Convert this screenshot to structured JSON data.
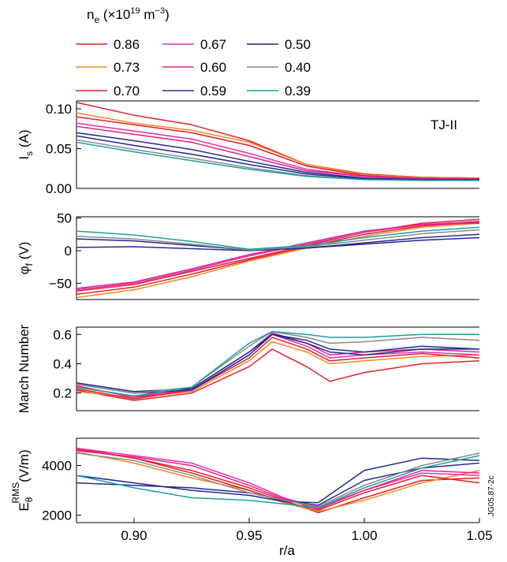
{
  "chart_data": {
    "type": "line",
    "legend": {
      "title_base": "n",
      "title_sub": "e",
      "title_rest": " (×10",
      "title_sup": "19",
      "title_unit": " m",
      "title_unit_sup": "−3",
      "title_close": ")",
      "placement": "top",
      "entries": [
        {
          "name": "0.86",
          "color": "#e8202a"
        },
        {
          "name": "0.73",
          "color": "#f08a24"
        },
        {
          "name": "0.70",
          "color": "#e0202c"
        },
        {
          "name": "0.67",
          "color": "#e030b0"
        },
        {
          "name": "0.60",
          "color": "#e8208a"
        },
        {
          "name": "0.59",
          "color": "#2a2a8c"
        },
        {
          "name": "0.50",
          "color": "#1f2a8f"
        },
        {
          "name": "0.40",
          "color": "#8a8a8a"
        },
        {
          "name": "0.39",
          "color": "#1aa0a0"
        }
      ]
    },
    "x": {
      "label": "r/a",
      "lim": [
        0.875,
        1.05
      ],
      "ticks": [
        "0.90",
        "0.95",
        "1.00",
        "1.05"
      ],
      "tick_values": [
        0.9,
        0.95,
        1.0,
        1.05
      ]
    },
    "annotation": "TJ-II",
    "watermark": "JG05.87-2c",
    "panels": [
      {
        "id": "Is",
        "ylabel_base": "I",
        "ylabel_sub": "s",
        "ylabel_rest": " (A)",
        "ylim": [
          0.0,
          0.11
        ],
        "yticks": [
          "0.10",
          "0.05",
          "0.00"
        ],
        "ytick_values": [
          0.1,
          0.05,
          0.0
        ],
        "series": [
          {
            "name": "0.86",
            "x": [
              0.875,
              0.9,
              0.925,
              0.95,
              0.975,
              1.0,
              1.025,
              1.05
            ],
            "y": [
              0.108,
              0.092,
              0.08,
              0.06,
              0.03,
              0.018,
              0.014,
              0.013
            ]
          },
          {
            "name": "0.73",
            "x": [
              0.875,
              0.9,
              0.925,
              0.95,
              0.975,
              1.0,
              1.025,
              1.05
            ],
            "y": [
              0.095,
              0.082,
              0.073,
              0.058,
              0.03,
              0.017,
              0.014,
              0.013
            ]
          },
          {
            "name": "0.70",
            "x": [
              0.875,
              0.9,
              0.925,
              0.95,
              0.975,
              1.0,
              1.025,
              1.05
            ],
            "y": [
              0.09,
              0.08,
              0.07,
              0.054,
              0.028,
              0.016,
              0.013,
              0.012
            ]
          },
          {
            "name": "0.67",
            "x": [
              0.875,
              0.9,
              0.925,
              0.95,
              0.975,
              1.0,
              1.025,
              1.05
            ],
            "y": [
              0.082,
              0.072,
              0.062,
              0.044,
              0.024,
              0.015,
              0.013,
              0.012
            ]
          },
          {
            "name": "0.60",
            "x": [
              0.875,
              0.9,
              0.925,
              0.95,
              0.975,
              1.0,
              1.025,
              1.05
            ],
            "y": [
              0.078,
              0.068,
              0.058,
              0.04,
              0.022,
              0.015,
              0.012,
              0.012
            ]
          },
          {
            "name": "0.59",
            "x": [
              0.875,
              0.9,
              0.925,
              0.95,
              0.975,
              1.0,
              1.025,
              1.05
            ],
            "y": [
              0.07,
              0.06,
              0.049,
              0.034,
              0.02,
              0.013,
              0.011,
              0.011
            ]
          },
          {
            "name": "0.50",
            "x": [
              0.875,
              0.9,
              0.925,
              0.95,
              0.975,
              1.0,
              1.025,
              1.05
            ],
            "y": [
              0.066,
              0.054,
              0.043,
              0.03,
              0.018,
              0.012,
              0.011,
              0.01
            ]
          },
          {
            "name": "0.40",
            "x": [
              0.875,
              0.9,
              0.925,
              0.95,
              0.975,
              1.0,
              1.025,
              1.05
            ],
            "y": [
              0.061,
              0.049,
              0.038,
              0.026,
              0.016,
              0.011,
              0.01,
              0.01
            ]
          },
          {
            "name": "0.39",
            "x": [
              0.875,
              0.9,
              0.925,
              0.95,
              0.975,
              1.0,
              1.025,
              1.05
            ],
            "y": [
              0.058,
              0.046,
              0.035,
              0.024,
              0.015,
              0.011,
              0.01,
              0.01
            ]
          }
        ]
      },
      {
        "id": "phi",
        "ylabel_base": "φ",
        "ylabel_sub": "f",
        "ylabel_rest": " (V)",
        "ylim": [
          -75,
          52
        ],
        "yticks": [
          "50",
          "0",
          "−50"
        ],
        "ytick_values": [
          50,
          0,
          -50
        ],
        "series": [
          {
            "name": "0.86",
            "x": [
              0.875,
              0.9,
              0.925,
              0.95,
              0.975,
              1.0,
              1.025,
              1.05
            ],
            "y": [
              -62,
              -52,
              -32,
              -12,
              8,
              28,
              42,
              48
            ]
          },
          {
            "name": "0.73",
            "x": [
              0.875,
              0.9,
              0.925,
              0.95,
              0.975,
              1.0,
              1.025,
              1.05
            ],
            "y": [
              -72,
              -60,
              -40,
              -16,
              4,
              22,
              36,
              42
            ]
          },
          {
            "name": "0.70",
            "x": [
              0.875,
              0.9,
              0.925,
              0.95,
              0.975,
              1.0,
              1.025,
              1.05
            ],
            "y": [
              -67,
              -56,
              -36,
              -14,
              6,
              25,
              38,
              44
            ]
          },
          {
            "name": "0.67",
            "x": [
              0.875,
              0.9,
              0.925,
              0.95,
              0.975,
              1.0,
              1.025,
              1.05
            ],
            "y": [
              -60,
              -50,
              -30,
              -8,
              10,
              28,
              40,
              45
            ]
          },
          {
            "name": "0.60",
            "x": [
              0.875,
              0.9,
              0.925,
              0.95,
              0.975,
              1.0,
              1.025,
              1.05
            ],
            "y": [
              -58,
              -48,
              -28,
              -6,
              12,
              30,
              40,
              42
            ]
          },
          {
            "name": "0.59",
            "x": [
              0.875,
              0.9,
              0.925,
              0.95,
              0.975,
              1.0,
              1.025,
              1.05
            ],
            "y": [
              5,
              6,
              3,
              0,
              4,
              12,
              20,
              25
            ]
          },
          {
            "name": "0.50",
            "x": [
              0.875,
              0.9,
              0.925,
              0.95,
              0.975,
              1.0,
              1.025,
              1.05
            ],
            "y": [
              18,
              15,
              8,
              1,
              4,
              10,
              16,
              20
            ]
          },
          {
            "name": "0.40",
            "x": [
              0.875,
              0.9,
              0.925,
              0.95,
              0.975,
              1.0,
              1.025,
              1.05
            ],
            "y": [
              22,
              18,
              10,
              1,
              6,
              16,
              26,
              32
            ]
          },
          {
            "name": "0.39",
            "x": [
              0.875,
              0.9,
              0.925,
              0.95,
              0.975,
              1.0,
              1.025,
              1.05
            ],
            "y": [
              30,
              24,
              14,
              2,
              8,
              20,
              30,
              36
            ]
          }
        ]
      },
      {
        "id": "mach",
        "ylabel_base": "March Number",
        "ylabel_sub": "",
        "ylabel_rest": "",
        "ylim": [
          0.08,
          0.65
        ],
        "yticks": [
          "0.6",
          "0.4",
          "0.2"
        ],
        "ytick_values": [
          0.6,
          0.4,
          0.2
        ],
        "series": [
          {
            "name": "0.86",
            "x": [
              0.875,
              0.9,
              0.925,
              0.95,
              0.96,
              0.975,
              0.985,
              1.0,
              1.025,
              1.05
            ],
            "y": [
              0.22,
              0.15,
              0.2,
              0.38,
              0.5,
              0.38,
              0.28,
              0.34,
              0.4,
              0.42
            ]
          },
          {
            "name": "0.73",
            "x": [
              0.875,
              0.9,
              0.925,
              0.95,
              0.96,
              0.975,
              0.985,
              1.0,
              1.025,
              1.05
            ],
            "y": [
              0.21,
              0.17,
              0.21,
              0.42,
              0.55,
              0.48,
              0.4,
              0.42,
              0.45,
              0.46
            ]
          },
          {
            "name": "0.70",
            "x": [
              0.875,
              0.9,
              0.925,
              0.95,
              0.96,
              0.975,
              0.985,
              1.0,
              1.025,
              1.05
            ],
            "y": [
              0.23,
              0.16,
              0.22,
              0.44,
              0.58,
              0.5,
              0.42,
              0.44,
              0.47,
              0.44
            ]
          },
          {
            "name": "0.67",
            "x": [
              0.875,
              0.9,
              0.925,
              0.95,
              0.96,
              0.975,
              0.985,
              1.0,
              1.025,
              1.05
            ],
            "y": [
              0.24,
              0.18,
              0.22,
              0.46,
              0.6,
              0.52,
              0.44,
              0.46,
              0.48,
              0.46
            ]
          },
          {
            "name": "0.60",
            "x": [
              0.875,
              0.9,
              0.925,
              0.95,
              0.96,
              0.975,
              0.985,
              1.0,
              1.025,
              1.05
            ],
            "y": [
              0.25,
              0.17,
              0.23,
              0.48,
              0.61,
              0.54,
              0.46,
              0.48,
              0.5,
              0.48
            ]
          },
          {
            "name": "0.59",
            "x": [
              0.875,
              0.9,
              0.925,
              0.95,
              0.96,
              0.975,
              0.985,
              1.0,
              1.025,
              1.05
            ],
            "y": [
              0.26,
              0.2,
              0.22,
              0.46,
              0.6,
              0.54,
              0.48,
              0.46,
              0.5,
              0.5
            ]
          },
          {
            "name": "0.50",
            "x": [
              0.875,
              0.9,
              0.925,
              0.95,
              0.96,
              0.975,
              0.985,
              1.0,
              1.025,
              1.05
            ],
            "y": [
              0.27,
              0.21,
              0.23,
              0.48,
              0.6,
              0.56,
              0.5,
              0.48,
              0.52,
              0.5
            ]
          },
          {
            "name": "0.40",
            "x": [
              0.875,
              0.9,
              0.925,
              0.95,
              0.96,
              0.975,
              0.985,
              1.0,
              1.025,
              1.05
            ],
            "y": [
              0.26,
              0.2,
              0.24,
              0.52,
              0.62,
              0.58,
              0.54,
              0.55,
              0.58,
              0.56
            ]
          },
          {
            "name": "0.39",
            "x": [
              0.875,
              0.9,
              0.925,
              0.95,
              0.96,
              0.975,
              0.985,
              1.0,
              1.025,
              1.05
            ],
            "y": [
              0.24,
              0.18,
              0.24,
              0.54,
              0.62,
              0.6,
              0.58,
              0.58,
              0.6,
              0.6
            ]
          }
        ]
      },
      {
        "id": "Erms",
        "ylabel_base": "E",
        "ylabel_sub": "θ",
        "ylabel_sup": "RMS",
        "ylabel_rest": "(V/m)",
        "ylim": [
          1700,
          5100
        ],
        "yticks": [
          "4000",
          "2000"
        ],
        "ytick_values": [
          4000,
          2000
        ],
        "series": [
          {
            "name": "0.86",
            "x": [
              0.875,
              0.9,
              0.925,
              0.95,
              0.965,
              0.98,
              1.0,
              1.025,
              1.05
            ],
            "y": [
              4700,
              4300,
              3800,
              3100,
              2600,
              2100,
              2700,
              3400,
              3500
            ]
          },
          {
            "name": "0.73",
            "x": [
              0.875,
              0.9,
              0.925,
              0.95,
              0.965,
              0.98,
              1.0,
              1.025,
              1.05
            ],
            "y": [
              4550,
              4100,
              3500,
              3000,
              2500,
              2150,
              2600,
              3300,
              3800
            ]
          },
          {
            "name": "0.70",
            "x": [
              0.875,
              0.9,
              0.925,
              0.95,
              0.965,
              0.98,
              1.0,
              1.025,
              1.05
            ],
            "y": [
              4650,
              4300,
              3700,
              3000,
              2550,
              2200,
              2900,
              3600,
              3300
            ]
          },
          {
            "name": "0.67",
            "x": [
              0.875,
              0.9,
              0.925,
              0.95,
              0.965,
              0.98,
              1.0,
              1.025,
              1.05
            ],
            "y": [
              4700,
              4400,
              4100,
              3300,
              2700,
              2300,
              3000,
              3700,
              3600
            ]
          },
          {
            "name": "0.60",
            "x": [
              0.875,
              0.9,
              0.925,
              0.95,
              0.965,
              0.98,
              1.0,
              1.025,
              1.05
            ],
            "y": [
              4600,
              4350,
              4000,
              3200,
              2650,
              2250,
              3000,
              3800,
              3700
            ]
          },
          {
            "name": "0.59",
            "x": [
              0.875,
              0.9,
              0.925,
              0.95,
              0.965,
              0.98,
              1.0,
              1.025,
              1.05
            ],
            "y": [
              3300,
              3200,
              3100,
              2900,
              2600,
              2400,
              3400,
              3900,
              4100
            ]
          },
          {
            "name": "0.50",
            "x": [
              0.875,
              0.9,
              0.925,
              0.95,
              0.965,
              0.98,
              1.0,
              1.025,
              1.05
            ],
            "y": [
              3600,
              3300,
              3000,
              2800,
              2550,
              2500,
              3800,
              4300,
              4200
            ]
          },
          {
            "name": "0.40",
            "x": [
              0.875,
              0.9,
              0.925,
              0.95,
              0.965,
              0.98,
              1.0,
              1.025,
              1.05
            ],
            "y": [
              4500,
              4200,
              3600,
              2900,
              2600,
              2350,
              3200,
              4000,
              4500
            ]
          },
          {
            "name": "0.39",
            "x": [
              0.875,
              0.9,
              0.925,
              0.95,
              0.965,
              0.98,
              1.0,
              1.025,
              1.05
            ],
            "y": [
              3600,
              3100,
              2700,
              2600,
              2450,
              2300,
              3100,
              3900,
              4400
            ]
          }
        ]
      }
    ]
  }
}
